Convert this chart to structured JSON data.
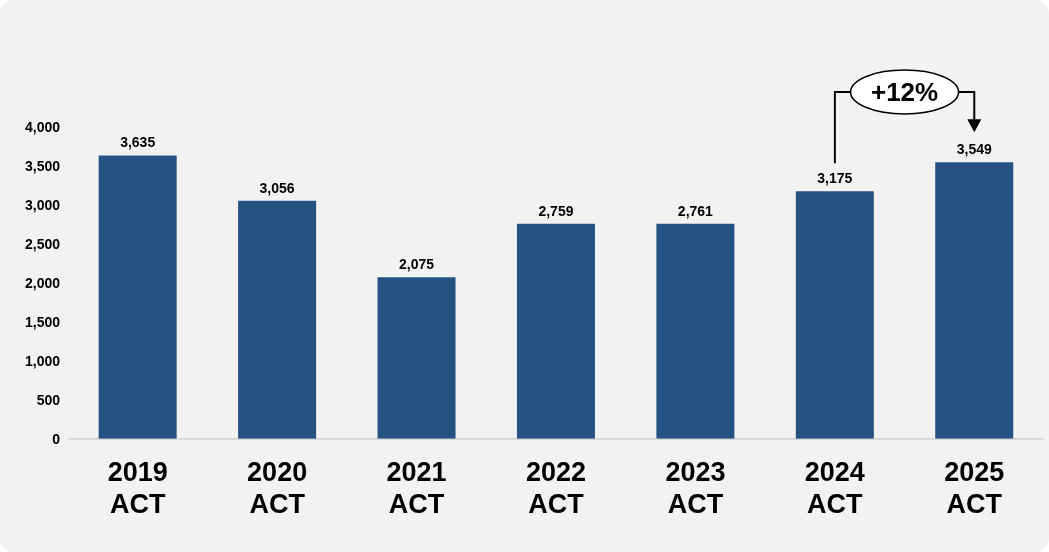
{
  "chart_data": {
    "type": "bar",
    "categories": [
      "2019 ACT",
      "2020 ACT",
      "2021 ACT",
      "2022 ACT",
      "2023 ACT",
      "2024 ACT",
      "2025 ACT"
    ],
    "values": [
      3635,
      3056,
      2075,
      2759,
      2761,
      3175,
      3549
    ],
    "value_labels": [
      "3,635",
      "3,056",
      "2,075",
      "2,759",
      "2,761",
      "3,175",
      "3,549"
    ],
    "color": "#235283",
    "ylim": [
      0,
      4000
    ],
    "yticks": [
      0,
      500,
      {
        "value": 1000,
        "label": "1,000"
      },
      {
        "value": 1500,
        "label": "1,500"
      },
      {
        "value": 2000,
        "label": "2,000"
      },
      {
        "value": 2500,
        "label": "2,500"
      },
      {
        "value": 3000,
        "label": "3,000"
      },
      {
        "value": 3500,
        "label": "3,500"
      },
      {
        "value": 4000,
        "label": "4,000"
      }
    ],
    "grid": false,
    "annotations": [
      "+12%"
    ]
  }
}
